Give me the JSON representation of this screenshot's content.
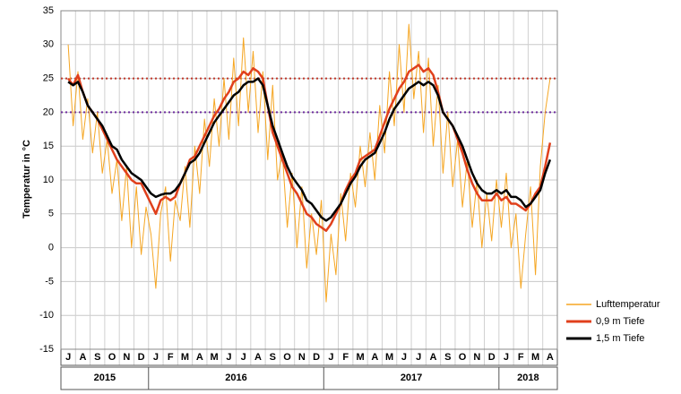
{
  "chart_data": {
    "type": "line",
    "y_label": "Temperatur in °C",
    "categories": [
      null,
      "J",
      null,
      null,
      "A",
      null,
      null,
      "S",
      null,
      null,
      "O",
      null,
      null,
      "N",
      null,
      null,
      "D",
      null,
      null,
      "J",
      null,
      null,
      "F",
      null,
      null,
      "M",
      null,
      null,
      "A",
      null,
      null,
      "M",
      null,
      null,
      "J",
      null,
      null,
      "J",
      null,
      null,
      "A",
      null,
      null,
      "S",
      null,
      null,
      "O",
      null,
      null,
      "N",
      null,
      null,
      "D",
      null,
      null,
      "J",
      null,
      null,
      "F",
      null,
      null,
      "M",
      null,
      null,
      "A",
      null,
      null,
      "M",
      null,
      null,
      "J",
      null,
      null,
      "J",
      null,
      null,
      "A",
      null,
      null,
      "S",
      null,
      null,
      "O",
      null,
      null,
      "N",
      null,
      null,
      "D",
      null,
      null,
      "J",
      null,
      null,
      "F",
      null,
      null,
      "M",
      null,
      null,
      "A",
      null
    ],
    "years": [
      "2015",
      "2016",
      "2017",
      "2018"
    ],
    "series": [
      {
        "name": "Lufttemperatur",
        "color": "#f5a623",
        "width": 1,
        "values": [
          null,
          30,
          18,
          26,
          16,
          22,
          14,
          20,
          11,
          16,
          8,
          13,
          4,
          12,
          0,
          9,
          -1,
          6,
          2,
          -6,
          5,
          9,
          -2,
          7,
          4,
          12,
          3,
          15,
          8,
          19,
          12,
          22,
          15,
          25,
          16,
          28,
          18,
          31,
          20,
          29,
          17,
          26,
          13,
          24,
          10,
          14,
          3,
          11,
          0,
          9,
          -3,
          5,
          -1,
          7,
          -8,
          2,
          -4,
          8,
          1,
          11,
          6,
          15,
          9,
          17,
          10,
          21,
          14,
          26,
          18,
          30,
          20,
          33,
          22,
          29,
          17,
          28,
          15,
          24,
          11,
          20,
          9,
          16,
          6,
          13,
          3,
          10,
          0,
          8,
          1,
          10,
          3,
          11,
          0,
          5,
          -6,
          2,
          9,
          -4,
          12,
          20,
          25,
          null
        ]
      },
      {
        "name": "0,9 m Tiefe",
        "color": "#e0401c",
        "width": 2.5,
        "values": [
          null,
          25,
          24,
          25.5,
          23,
          21,
          20,
          19,
          17.5,
          16,
          14.5,
          13,
          12,
          11,
          10,
          9.5,
          9.5,
          8,
          6.5,
          5,
          7,
          7.5,
          7,
          7.5,
          9.5,
          11,
          13,
          13.5,
          15,
          16.5,
          18,
          19.5,
          20.5,
          22,
          23,
          24.5,
          25,
          26,
          25.5,
          26.5,
          26,
          25,
          21,
          17,
          15,
          13,
          11,
          9,
          8,
          6.5,
          5,
          4.5,
          3.5,
          3,
          2.5,
          3.5,
          5,
          6.5,
          8.5,
          10,
          11,
          13,
          13.5,
          14,
          14.5,
          16.5,
          18.5,
          20.5,
          22,
          23.5,
          24.5,
          26,
          26.5,
          27,
          26,
          26.5,
          25.5,
          23,
          20,
          19,
          18,
          16,
          14,
          11.5,
          9.5,
          8,
          7,
          7,
          7,
          8,
          7,
          7.5,
          6.5,
          6.5,
          6,
          5.5,
          6.5,
          8,
          9,
          12,
          15.5,
          null
        ]
      },
      {
        "name": "1,5 m Tiefe",
        "color": "#000000",
        "width": 2.5,
        "values": [
          null,
          24.5,
          24,
          24.5,
          23,
          21,
          20,
          19,
          18,
          16.5,
          15,
          14.5,
          13,
          12,
          11,
          10.5,
          10,
          9,
          8,
          7.5,
          7.8,
          8,
          8,
          8.5,
          9.5,
          11,
          12.5,
          13,
          14,
          15.5,
          17,
          18.5,
          19.5,
          20.5,
          21.5,
          22.5,
          23,
          24,
          24.5,
          24.5,
          25,
          24,
          21,
          18,
          16,
          14,
          12,
          10.5,
          9.5,
          8.5,
          7,
          6.5,
          5.5,
          4.5,
          4,
          4.5,
          5.5,
          6.5,
          8,
          9.5,
          10.5,
          12,
          13,
          13.5,
          14,
          15.5,
          17,
          19,
          20.5,
          21.5,
          22.5,
          23.5,
          24,
          24.5,
          24,
          24.5,
          24,
          22.5,
          20,
          19,
          18,
          16.5,
          15,
          13,
          11,
          9.5,
          8.5,
          8,
          8,
          8.5,
          8,
          8.5,
          7.5,
          7.5,
          7,
          6,
          6.5,
          7.5,
          8.5,
          11,
          13,
          null
        ]
      }
    ],
    "reference_lines": [
      {
        "value": 25,
        "color": "#c0392b"
      },
      {
        "value": 20,
        "color": "#7030a0"
      }
    ],
    "ylim": [
      -15,
      35
    ],
    "yticks": [
      -15,
      -10,
      -5,
      0,
      5,
      10,
      15,
      20,
      25,
      30,
      35
    ],
    "grid": true,
    "legend": "bottom-right"
  }
}
